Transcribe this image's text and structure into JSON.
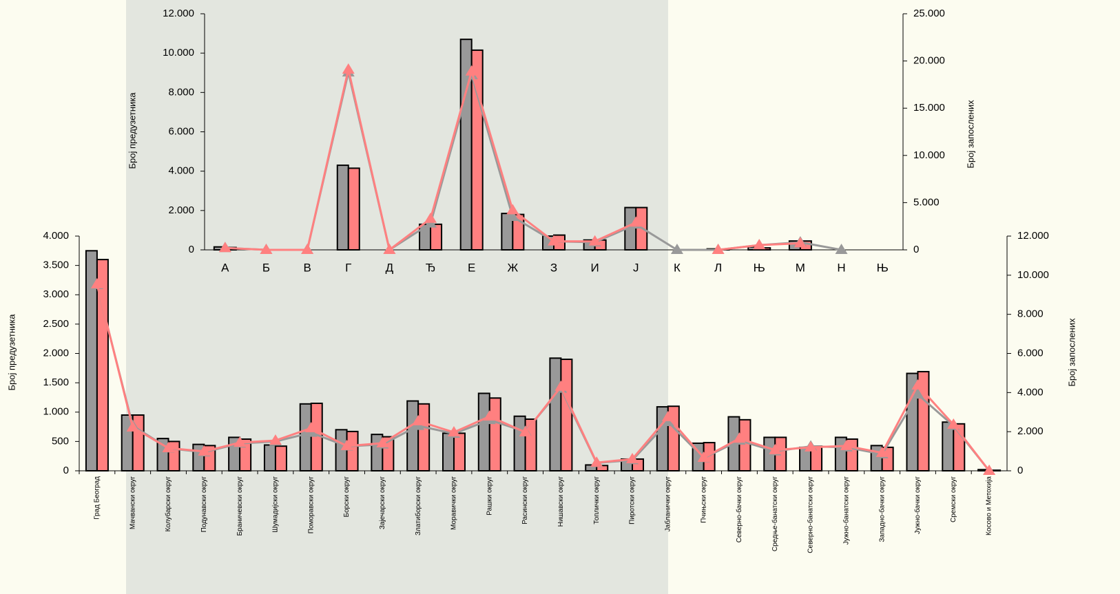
{
  "chart_data": [
    {
      "type": "bar",
      "y_label": "Број предузетника",
      "y2_label": "Број запослених",
      "categories": [
        "А",
        "Б",
        "В",
        "Г",
        "Д",
        "Ђ",
        "Е",
        "Ж",
        "З",
        "И",
        "Ј",
        "К",
        "Л",
        "Њ",
        "М",
        "Н",
        "Њ"
      ],
      "ylim": [
        0,
        12000
      ],
      "yticks": [
        0,
        {
          "value": 2000,
          "label": "2.000"
        },
        {
          "value": 4000,
          "label": "4.000"
        },
        {
          "value": 6000,
          "label": "6.000"
        },
        {
          "value": 8000,
          "label": "8.000"
        },
        {
          "value": 10000,
          "label": "10.000"
        },
        {
          "value": 12000,
          "label": "12.000"
        }
      ],
      "y2lim": [
        0,
        25000
      ],
      "y2ticks": [
        0,
        {
          "value": 5000,
          "label": "5.000"
        },
        {
          "value": 10000,
          "label": "10.000"
        },
        {
          "value": 15000,
          "label": "15.000"
        },
        {
          "value": 20000,
          "label": "20.000"
        },
        {
          "value": 25000,
          "label": "25.000"
        }
      ],
      "grid": false,
      "series": [
        {
          "type": "bar",
          "color": "#999999",
          "values": [
            150,
            0,
            0,
            4300,
            0,
            1300,
            10700,
            1850,
            700,
            500,
            2150,
            0,
            50,
            150,
            450,
            0,
            0
          ]
        },
        {
          "type": "bar",
          "color": "#ff8080",
          "values": [
            120,
            0,
            0,
            4150,
            0,
            1300,
            10150,
            1800,
            750,
            500,
            2150,
            0,
            30,
            100,
            450,
            0,
            0
          ]
        },
        {
          "type": "line",
          "axis": "y2",
          "color": "#999999",
          "values": [
            200,
            0,
            0,
            18800,
            0,
            2800,
            18500,
            3500,
            900,
            800,
            2700,
            0,
            0,
            500,
            800,
            0,
            null
          ]
        },
        {
          "type": "line",
          "axis": "y2",
          "color": "#ff8080",
          "values": [
            200,
            0,
            0,
            19100,
            0,
            3300,
            18900,
            4200,
            900,
            900,
            2900,
            null,
            0,
            500,
            700,
            null,
            null
          ]
        }
      ]
    },
    {
      "type": "bar",
      "y_label": "Број предузетника",
      "y2_label": "Број запослених",
      "categories": [
        "Град Београд",
        "Мачвански округ",
        "Колубарски округ",
        "Подунавски округ",
        "Браничевски округ",
        "Шумадијски округ",
        "Поморавски округ",
        "Борски округ",
        "Зајечарски округ",
        "Златиборски округ",
        "Моравички округ",
        "Рашки округ",
        "Расински округ",
        "Нишавски округ",
        "Топлички округ",
        "Пиротски округ",
        "Јабланички округ",
        "Пчињски округ",
        "Северно-бачки округ",
        "Средње-банатски округ",
        "Северно-банатски округ",
        "Јужно-банатски округ",
        "Западно-бачки округ",
        "Јужно-бачки округ",
        "Сремски округ",
        "Косово и Метохија"
      ],
      "ylim": [
        0,
        4000
      ],
      "yticks": [
        0,
        500,
        {
          "value": 1000,
          "label": "1.000"
        },
        {
          "value": 1500,
          "label": "1.500"
        },
        {
          "value": 2000,
          "label": "2.000"
        },
        {
          "value": 2500,
          "label": "2.500"
        },
        {
          "value": 3000,
          "label": "3.000"
        },
        {
          "value": 3500,
          "label": "3.500"
        },
        {
          "value": 4000,
          "label": "4.000"
        }
      ],
      "y2lim": [
        0,
        12000
      ],
      "y2ticks": [
        0,
        {
          "value": 2000,
          "label": "2.000"
        },
        {
          "value": 4000,
          "label": "4.000"
        },
        {
          "value": 6000,
          "label": "6.000"
        },
        {
          "value": 8000,
          "label": "8.000"
        },
        {
          "value": 10000,
          "label": "10.000"
        },
        {
          "value": 12000,
          "label": "12.000"
        }
      ],
      "grid": false,
      "series": [
        {
          "type": "bar",
          "color": "#999999",
          "values": [
            3750,
            950,
            550,
            450,
            570,
            440,
            1140,
            700,
            620,
            1190,
            640,
            1320,
            930,
            1920,
            100,
            200,
            1090,
            470,
            920,
            570,
            400,
            570,
            430,
            1660,
            830,
            20
          ]
        },
        {
          "type": "bar",
          "color": "#ff8080",
          "values": [
            3600,
            950,
            500,
            430,
            540,
            420,
            1150,
            670,
            580,
            1140,
            640,
            1240,
            880,
            1900,
            90,
            200,
            1100,
            480,
            870,
            570,
            420,
            540,
            400,
            1690,
            800,
            10
          ]
        },
        {
          "type": "line",
          "axis": "y2",
          "color": "#999999",
          "values": [
            9500,
            2300,
            1150,
            950,
            1400,
            1500,
            1950,
            1250,
            1350,
            2300,
            1900,
            2600,
            2000,
            4200,
            400,
            550,
            2500,
            650,
            1550,
            1000,
            1250,
            1200,
            850,
            3900,
            2300,
            0
          ]
        },
        {
          "type": "line",
          "axis": "y2",
          "color": "#ff8080",
          "values": [
            9540,
            2220,
            1160,
            990,
            1440,
            1550,
            2180,
            1270,
            1410,
            2540,
            1970,
            2780,
            1970,
            4300,
            420,
            600,
            2750,
            670,
            1650,
            1060,
            1200,
            1270,
            920,
            4370,
            2360,
            0
          ]
        }
      ]
    }
  ]
}
